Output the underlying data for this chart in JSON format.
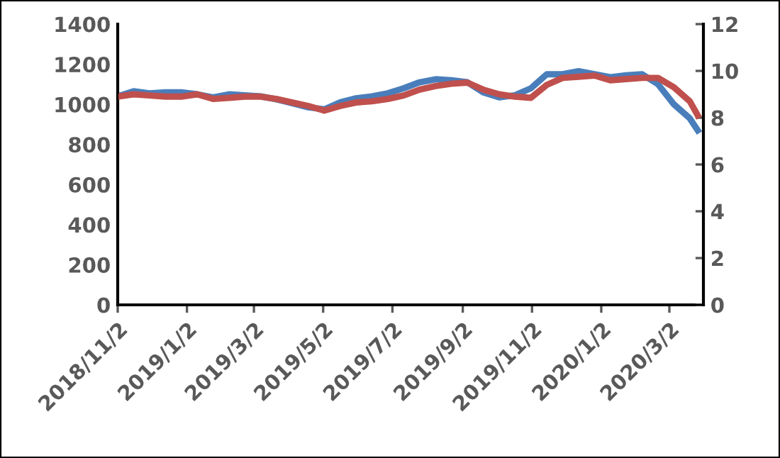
{
  "chart_data": {
    "type": "line",
    "x": [
      "2018-11-02",
      "2018-11-16",
      "2018-11-30",
      "2018-12-14",
      "2018-12-28",
      "2019-01-11",
      "2019-01-25",
      "2019-02-08",
      "2019-02-22",
      "2019-03-08",
      "2019-03-22",
      "2019-04-05",
      "2019-04-19",
      "2019-05-03",
      "2019-05-17",
      "2019-05-31",
      "2019-06-14",
      "2019-06-28",
      "2019-07-12",
      "2019-07-26",
      "2019-08-09",
      "2019-08-23",
      "2019-09-06",
      "2019-09-20",
      "2019-10-04",
      "2019-10-18",
      "2019-11-01",
      "2019-11-15",
      "2019-11-29",
      "2019-12-13",
      "2019-12-27",
      "2020-01-10",
      "2020-01-24",
      "2020-02-07",
      "2020-02-21",
      "2020-03-06",
      "2020-03-20",
      "2020-03-27"
    ],
    "series": [
      {
        "color": "#4a7ebb",
        "values": [
          1040,
          1065,
          1055,
          1060,
          1060,
          1050,
          1035,
          1050,
          1045,
          1040,
          1025,
          1005,
          985,
          975,
          1010,
          1030,
          1040,
          1055,
          1080,
          1110,
          1125,
          1120,
          1110,
          1060,
          1035,
          1045,
          1080,
          1150,
          1150,
          1165,
          1150,
          1135,
          1145,
          1150,
          1100,
          1000,
          930,
          870
        ]
      },
      {
        "color": "#c0504d",
        "axis": "y2",
        "values": [
          8.9,
          9.0,
          8.95,
          8.9,
          8.9,
          9.0,
          8.8,
          8.85,
          8.9,
          8.9,
          8.8,
          8.65,
          8.5,
          8.3,
          8.5,
          8.65,
          8.7,
          8.8,
          8.95,
          9.2,
          9.35,
          9.45,
          9.5,
          9.2,
          9.0,
          8.9,
          8.85,
          9.4,
          9.7,
          9.75,
          9.8,
          9.6,
          9.65,
          9.7,
          9.7,
          9.3,
          8.7,
          8.1
        ]
      }
    ],
    "xlim": [
      "2018-11-02",
      "2020-04-01"
    ],
    "xticks": [
      {
        "value": "2018-11-02",
        "label": "2018/11/2"
      },
      {
        "value": "2019-01-02",
        "label": "2019/1/2"
      },
      {
        "value": "2019-03-02",
        "label": "2019/3/2"
      },
      {
        "value": "2019-05-02",
        "label": "2019/5/2"
      },
      {
        "value": "2019-07-02",
        "label": "2019/7/2"
      },
      {
        "value": "2019-09-02",
        "label": "2019/9/2"
      },
      {
        "value": "2019-11-02",
        "label": "2019/11/2"
      },
      {
        "value": "2020-01-02",
        "label": "2020/1/2"
      },
      {
        "value": "2020-03-02",
        "label": "2020/3/2"
      }
    ],
    "ylim": [
      0,
      1400
    ],
    "yticks": [
      0,
      200,
      400,
      600,
      800,
      1000,
      1200,
      1400
    ],
    "y2lim": [
      0,
      12
    ],
    "y2ticks": [
      0,
      2,
      4,
      6,
      8,
      10,
      12
    ],
    "grid": false,
    "legend": false,
    "marker": "none",
    "line_style": "solid"
  }
}
